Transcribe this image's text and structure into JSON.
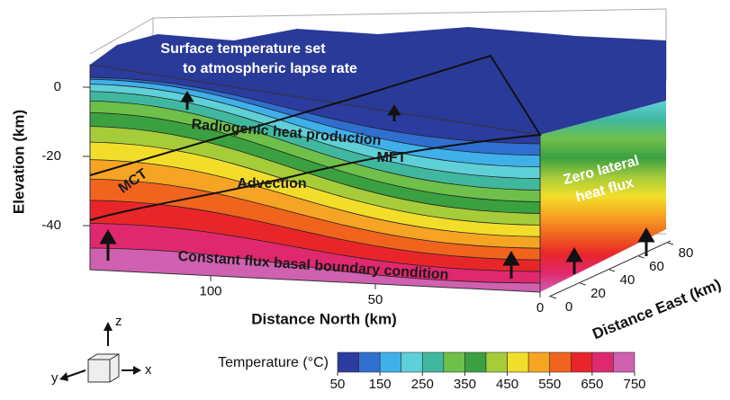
{
  "annotations": {
    "surface": [
      "Surface temperature set",
      "to atmospheric lapse rate"
    ],
    "radiogenic": "Radiogenic heat production",
    "mft": "MFT",
    "mct": "MCT",
    "advection": "Advection",
    "lateral": [
      "Zero lateral",
      "heat flux"
    ],
    "basal": "Constant flux basal boundary condition"
  },
  "axes": {
    "elevation": {
      "label": "Elevation (km)",
      "ticks": [
        0,
        -20,
        -40
      ]
    },
    "north": {
      "label": "Distance North (km)",
      "ticks": [
        100,
        50,
        0
      ]
    },
    "east": {
      "label": "Distance East (km)",
      "ticks": [
        0,
        20,
        40,
        60,
        80
      ]
    }
  },
  "orientation": {
    "z": "z",
    "y": "y",
    "x": "x"
  },
  "colorbar": {
    "label": "Temperature (°C)",
    "ticks": [
      50,
      150,
      250,
      350,
      450,
      550,
      650,
      750
    ],
    "colors": [
      "#2b3b9e",
      "#2f6fd0",
      "#3fb0ea",
      "#5fd0d8",
      "#40b8a0",
      "#6ec04a",
      "#3aa040",
      "#a6cc3a",
      "#f2de2a",
      "#f6a423",
      "#f0641e",
      "#e8262a",
      "#e0286e",
      "#d060b0"
    ]
  }
}
